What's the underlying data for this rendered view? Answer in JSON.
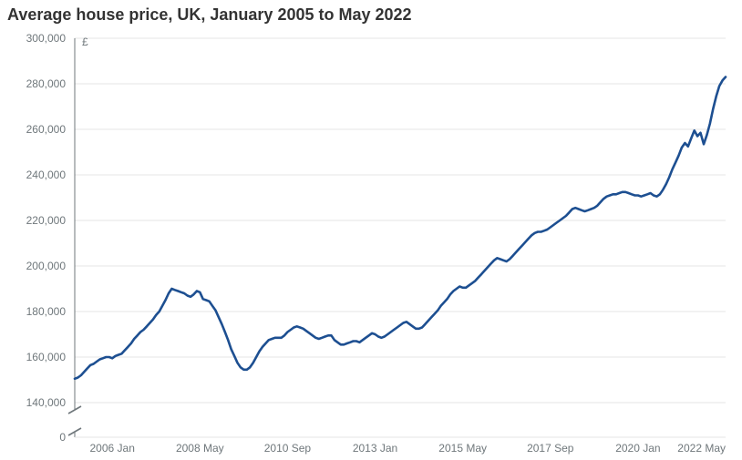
{
  "chart": {
    "type": "line",
    "title": "Average house price, UK, January 2005 to May 2022",
    "title_fontsize": 18,
    "title_fontweight": "bold",
    "title_color": "#333333",
    "currency_symbol": "£",
    "background_color": "#ffffff",
    "grid_color": "#e5e5e5",
    "axis_color": "#6f777b",
    "tick_label_color": "#6f777b",
    "tick_label_fontsize": 12,
    "line_color": "#1d4f91",
    "line_width": 2.6,
    "x": {
      "min_index": 0,
      "max_index": 208,
      "tick_indices": [
        12,
        40,
        68,
        96,
        124,
        152,
        180,
        208
      ],
      "tick_labels": [
        "2006 Jan",
        "2008 May",
        "2010 Sep",
        "2013 Jan",
        "2015 May",
        "2017 Sep",
        "2020 Jan",
        "2022 May"
      ]
    },
    "y": {
      "min": 140000,
      "max": 300000,
      "tick_step": 20000,
      "tick_labels": [
        "140,000",
        "160,000",
        "180,000",
        "200,000",
        "220,000",
        "240,000",
        "260,000",
        "280,000",
        "300,000"
      ],
      "zero_label": "0",
      "axis_break": true
    },
    "values": [
      150500,
      151000,
      152000,
      153500,
      155000,
      156500,
      157000,
      158000,
      159000,
      159500,
      160000,
      160000,
      159500,
      160500,
      161000,
      161500,
      163000,
      164500,
      166000,
      168000,
      169500,
      171000,
      172000,
      173500,
      175000,
      176500,
      178500,
      180000,
      182500,
      185000,
      188000,
      190000,
      189500,
      189000,
      188500,
      188000,
      187000,
      186500,
      187500,
      189000,
      188500,
      185500,
      185000,
      184500,
      182500,
      180500,
      177500,
      174500,
      171000,
      167500,
      163500,
      160500,
      157500,
      155500,
      154500,
      154500,
      155500,
      157500,
      160000,
      162500,
      164500,
      166000,
      167500,
      168000,
      168500,
      168500,
      168500,
      169500,
      171000,
      172000,
      173000,
      173500,
      173000,
      172500,
      171500,
      170500,
      169500,
      168500,
      168000,
      168500,
      169000,
      169500,
      169500,
      167500,
      166500,
      165500,
      165500,
      166000,
      166500,
      167000,
      167000,
      166500,
      167500,
      168500,
      169500,
      170500,
      170000,
      169000,
      168500,
      169000,
      170000,
      171000,
      172000,
      173000,
      174000,
      175000,
      175500,
      174500,
      173500,
      172500,
      172500,
      173000,
      174500,
      176000,
      177500,
      179000,
      180500,
      182500,
      184000,
      185500,
      187500,
      189000,
      190000,
      191000,
      190500,
      190500,
      191500,
      192500,
      193500,
      195000,
      196500,
      198000,
      199500,
      201000,
      202500,
      203500,
      203000,
      202500,
      202000,
      203000,
      204500,
      206000,
      207500,
      209000,
      210500,
      212000,
      213500,
      214500,
      215000,
      215000,
      215500,
      216000,
      217000,
      218000,
      219000,
      220000,
      221000,
      222000,
      223500,
      225000,
      225500,
      225000,
      224500,
      224000,
      224500,
      225000,
      225500,
      226500,
      228000,
      229500,
      230500,
      231000,
      231500,
      231500,
      232000,
      232500,
      232500,
      232000,
      231500,
      231000,
      231000,
      230500,
      231000,
      231500,
      232000,
      231000,
      230500,
      231500,
      233500,
      236000,
      239000,
      242500,
      245500,
      248500,
      252000,
      254000,
      252500,
      256000,
      259500,
      257000,
      258500,
      253500,
      257500,
      262500,
      269000,
      274500,
      279000,
      281500,
      283000
    ]
  }
}
